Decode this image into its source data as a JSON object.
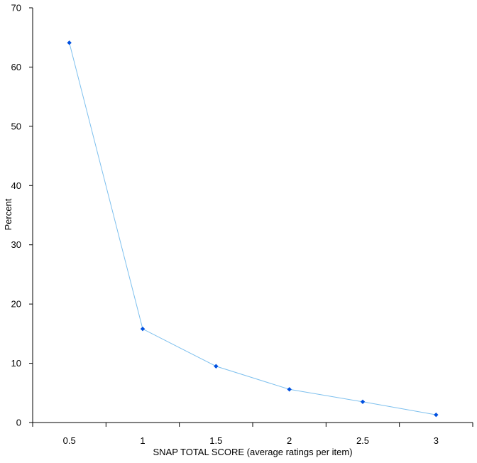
{
  "chart_data": {
    "type": "line",
    "title": "",
    "xlabel": "SNAP TOTAL SCORE (average ratings per item)",
    "ylabel": "Percent",
    "categories": [
      "0.5",
      "1",
      "1.5",
      "2",
      "2.5",
      "3"
    ],
    "series": [
      {
        "values": [
          64.1,
          15.8,
          9.5,
          5.6,
          3.5,
          1.3
        ]
      }
    ],
    "ylim": [
      0,
      70
    ],
    "yticks": [
      "0",
      "10",
      "20",
      "30",
      "40",
      "50",
      "60",
      "70"
    ],
    "grid": false,
    "legend": "none",
    "colors": {
      "line": "#7ec0ee",
      "marker": "#0050e0",
      "axis": "#000000"
    }
  }
}
